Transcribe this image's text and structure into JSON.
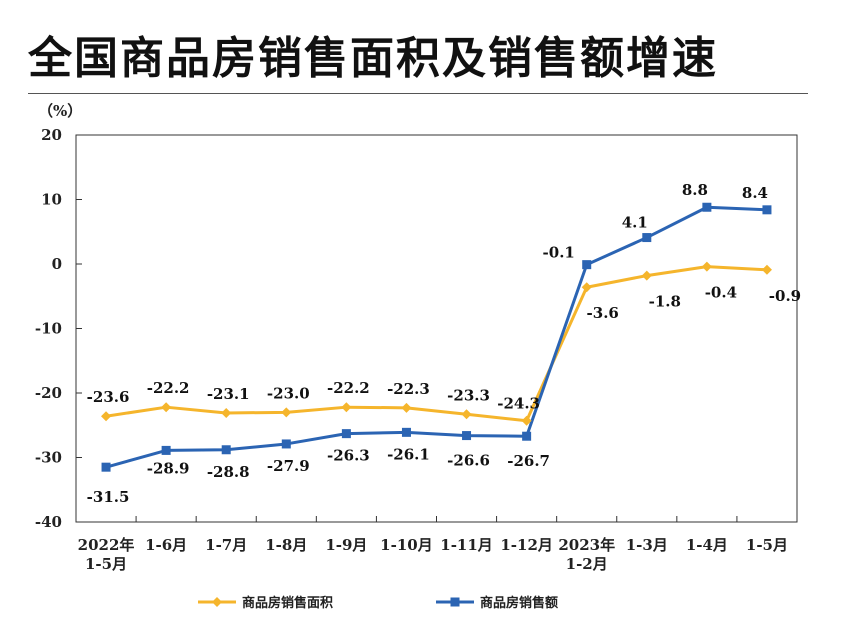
{
  "title": "全国商品房销售面积及销售额增速",
  "chart_data": {
    "type": "line",
    "ylabel": "（%）",
    "ylim": [
      -40,
      20
    ],
    "yticks": [
      20,
      10,
      0,
      -10,
      -20,
      -30,
      -40
    ],
    "categories": [
      [
        "2022年",
        "1-5月"
      ],
      [
        "1-6月"
      ],
      [
        "1-7月"
      ],
      [
        "1-8月"
      ],
      [
        "1-9月"
      ],
      [
        "1-10月"
      ],
      [
        "1-11月"
      ],
      [
        "1-12月"
      ],
      [
        "2023年",
        "1-2月"
      ],
      [
        "1-3月"
      ],
      [
        "1-4月"
      ],
      [
        "1-5月"
      ]
    ],
    "series": [
      {
        "name": "商品房销售面积",
        "color": "#f5b52c",
        "marker": "diamond",
        "values": [
          -23.6,
          -22.2,
          -23.1,
          -23.0,
          -22.2,
          -22.3,
          -23.3,
          -24.3,
          -3.6,
          -1.8,
          -0.4,
          -0.9
        ],
        "labels": [
          "-23.6",
          "-22.2",
          "-23.1",
          "-23.0",
          "-22.2",
          "-22.3",
          "-23.3",
          "-24.3",
          "-3.6",
          "-1.8",
          "-0.4",
          "-0.9"
        ]
      },
      {
        "name": "商品房销售额",
        "color": "#2b64b3",
        "marker": "square",
        "values": [
          -31.5,
          -28.9,
          -28.8,
          -27.9,
          -26.3,
          -26.1,
          -26.6,
          -26.7,
          -0.1,
          4.1,
          8.8,
          8.4
        ],
        "labels": [
          "-31.5",
          "-28.9",
          "-28.8",
          "-27.9",
          "-26.3",
          "-26.1",
          "-26.6",
          "-26.7",
          "-0.1",
          "4.1",
          "8.8",
          "8.4"
        ]
      }
    ],
    "legend_position": "bottom"
  }
}
